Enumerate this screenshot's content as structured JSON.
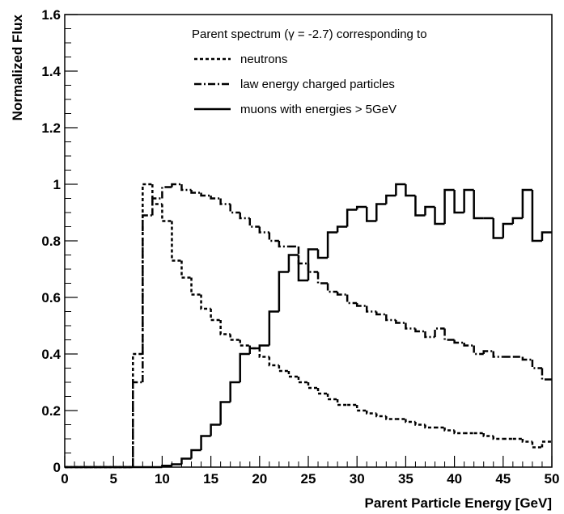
{
  "chart_data": {
    "type": "histogram",
    "x_label": "Parent Particle Energy [GeV]",
    "y_label": "Normalized Flux",
    "legend_title": "Parent spectrum (γ = -2.7) corresponding to",
    "legend_position": "upper right",
    "bins": [
      0,
      1,
      2,
      3,
      4,
      5,
      6,
      7,
      8,
      9,
      10,
      11,
      12,
      13,
      14,
      15,
      16,
      17,
      18,
      19,
      20,
      21,
      22,
      23,
      24,
      25,
      26,
      27,
      28,
      29,
      30,
      31,
      32,
      33,
      34,
      35,
      36,
      37,
      38,
      39,
      40,
      41,
      42,
      43,
      44,
      45,
      46,
      47,
      48,
      49,
      50
    ],
    "xlim": [
      0,
      50
    ],
    "ylim": [
      0,
      1.6
    ],
    "xticks": [
      0,
      5,
      10,
      15,
      20,
      25,
      30,
      35,
      40,
      45,
      50
    ],
    "yticks": [
      0,
      0.2,
      0.4,
      0.6,
      0.8,
      1,
      1.2,
      1.4,
      1.6
    ],
    "series": [
      {
        "name": "neutrons",
        "color": "#000000",
        "dash": "dotted",
        "values": [
          0,
          0,
          0,
          0,
          0,
          0,
          0,
          0.4,
          1.0,
          0.93,
          0.87,
          0.73,
          0.67,
          0.61,
          0.56,
          0.52,
          0.47,
          0.45,
          0.43,
          0.42,
          0.39,
          0.36,
          0.34,
          0.32,
          0.3,
          0.28,
          0.26,
          0.24,
          0.22,
          0.22,
          0.2,
          0.19,
          0.18,
          0.17,
          0.17,
          0.16,
          0.15,
          0.14,
          0.14,
          0.13,
          0.12,
          0.12,
          0.12,
          0.11,
          0.1,
          0.1,
          0.1,
          0.09,
          0.07,
          0.09
        ]
      },
      {
        "name": "law energy charged particles",
        "color": "#000000",
        "dash": "dashdot",
        "values": [
          0,
          0,
          0,
          0,
          0,
          0,
          0,
          0.3,
          0.89,
          0.95,
          0.99,
          1.0,
          0.98,
          0.97,
          0.96,
          0.95,
          0.93,
          0.9,
          0.88,
          0.85,
          0.83,
          0.8,
          0.78,
          0.78,
          0.72,
          0.69,
          0.65,
          0.62,
          0.61,
          0.58,
          0.57,
          0.55,
          0.54,
          0.52,
          0.51,
          0.49,
          0.48,
          0.46,
          0.49,
          0.45,
          0.44,
          0.43,
          0.4,
          0.41,
          0.39,
          0.39,
          0.39,
          0.38,
          0.35,
          0.31
        ]
      },
      {
        "name": "muons with energies > 5GeV",
        "color": "#000000",
        "dash": "solid",
        "values": [
          0,
          0,
          0,
          0,
          0,
          0,
          0,
          0,
          0,
          0,
          0.005,
          0.01,
          0.03,
          0.06,
          0.11,
          0.15,
          0.23,
          0.3,
          0.4,
          0.42,
          0.43,
          0.55,
          0.69,
          0.75,
          0.66,
          0.77,
          0.74,
          0.83,
          0.85,
          0.91,
          0.92,
          0.87,
          0.93,
          0.96,
          1.0,
          0.96,
          0.89,
          0.92,
          0.86,
          0.98,
          0.9,
          0.98,
          0.88,
          0.88,
          0.81,
          0.86,
          0.88,
          0.98,
          0.8,
          0.83
        ]
      }
    ]
  }
}
